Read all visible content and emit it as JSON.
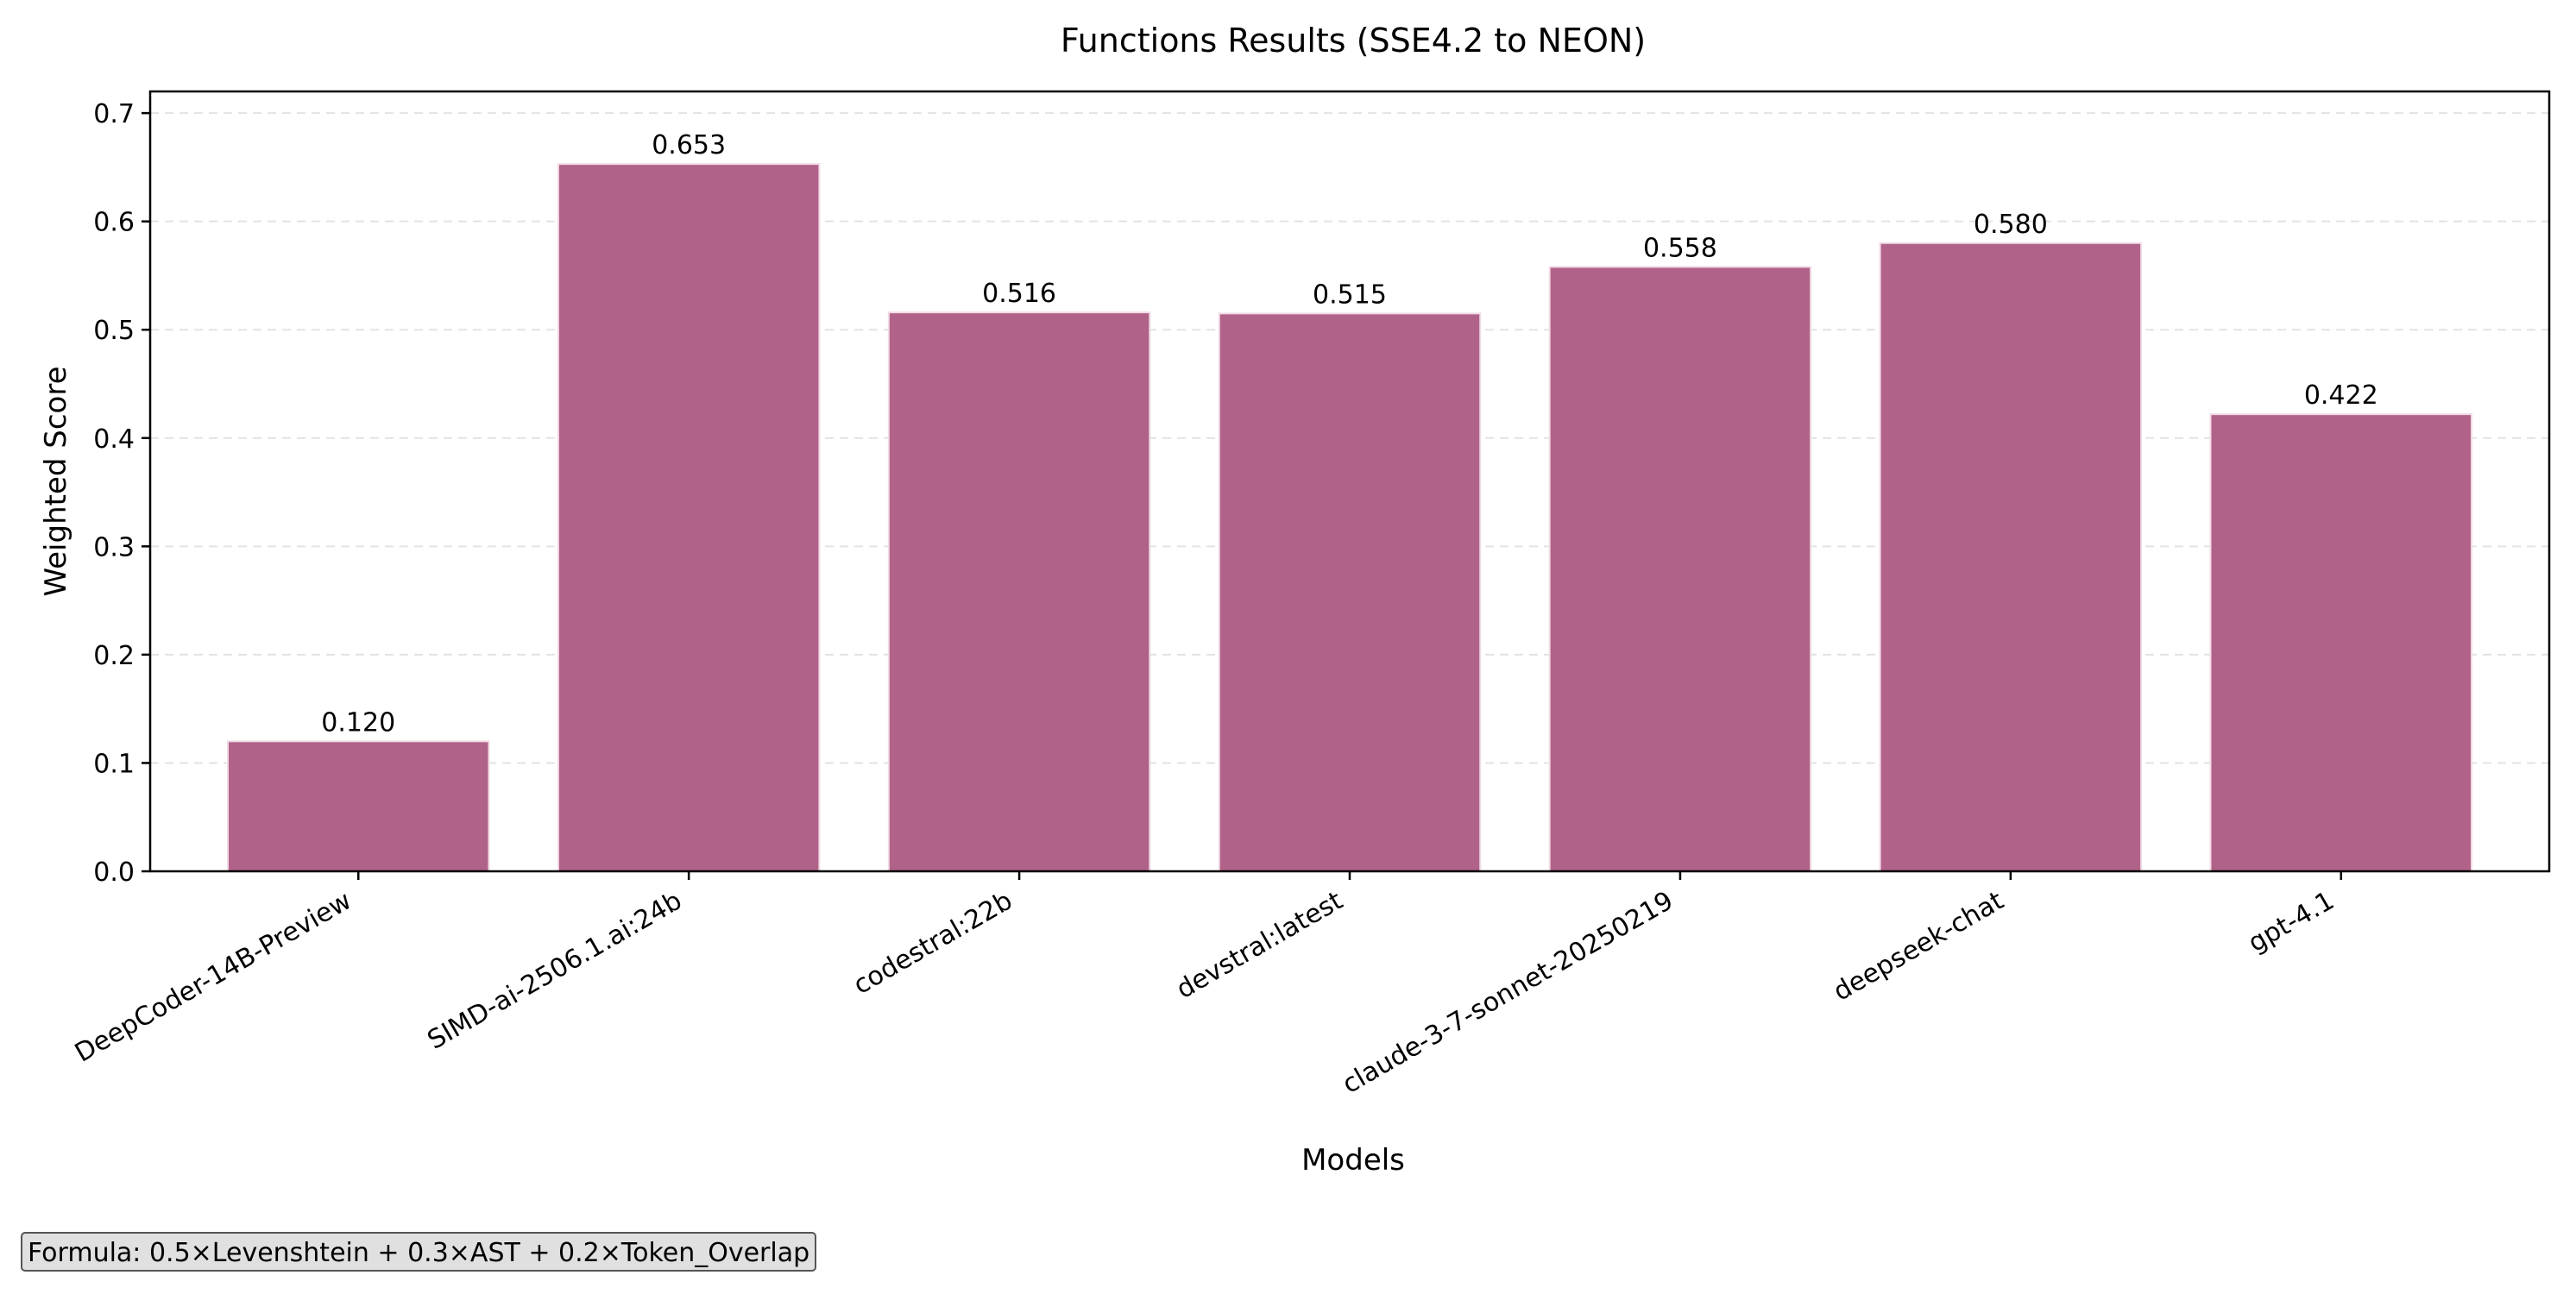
{
  "chart_data": {
    "type": "bar",
    "title": "Functions Results (SSE4.2 to NEON)",
    "xlabel": "Models",
    "ylabel": "Weighted Score",
    "categories": [
      "DeepCoder-14B-Preview",
      "SIMD-ai-2506.1.ai:24b",
      "codestral:22b",
      "devstral:latest",
      "claude-3-7-sonnet-20250219",
      "deepseek-chat",
      "gpt-4.1"
    ],
    "values": [
      0.12,
      0.653,
      0.516,
      0.515,
      0.558,
      0.58,
      0.422
    ],
    "data_labels": [
      "0.120",
      "0.653",
      "0.516",
      "0.515",
      "0.558",
      "0.580",
      "0.422"
    ],
    "ylim": [
      0,
      0.72
    ],
    "yticks": [
      "0.0",
      "0.1",
      "0.2",
      "0.3",
      "0.4",
      "0.5",
      "0.6",
      "0.7"
    ],
    "grid": "horizontal dashed",
    "bar_color": "#b06289",
    "annotation": "Formula: 0.5×Levenshtein + 0.3×AST + 0.2×Token_Overlap"
  }
}
